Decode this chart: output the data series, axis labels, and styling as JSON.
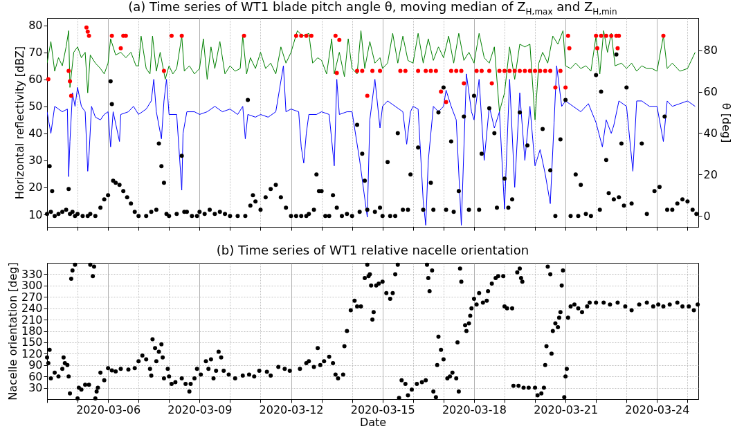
{
  "chart_data": [
    {
      "type": "line",
      "title": "(a) Time series of WT1 blade pitch angle θ, moving median of Z$_{H,max}$ and Z$_{H,min}$",
      "ylabel": "Horizontal reflectivity [dBZ]",
      "y2label": "θ [deg]",
      "xlim": [
        "2020-03-04T00:00",
        "2020-03-25T08:30"
      ],
      "xticks": [
        {
          "value": "2020-03-04",
          "label": null
        },
        {
          "value": "2020-03-05",
          "label": null
        },
        "2020-03-06",
        {
          "value": "2020-03-07",
          "label": null
        },
        {
          "value": "2020-03-08",
          "label": null
        },
        "2020-03-09",
        {
          "value": "2020-03-10",
          "label": null
        },
        {
          "value": "2020-03-11",
          "label": null
        },
        "2020-03-12",
        {
          "value": "2020-03-13",
          "label": null
        },
        {
          "value": "2020-03-14",
          "label": null
        },
        "2020-03-15",
        {
          "value": "2020-03-16",
          "label": null
        },
        {
          "value": "2020-03-17",
          "label": null
        },
        "2020-03-18",
        {
          "value": "2020-03-19",
          "label": null
        },
        {
          "value": "2020-03-20",
          "label": null
        },
        "2020-03-21",
        {
          "value": "2020-03-22",
          "label": null
        },
        {
          "value": "2020-03-23",
          "label": null
        },
        "2020-03-24",
        {
          "value": "2020-03-25",
          "label": null
        }
      ],
      "ylim": [
        5.4,
        82.7
      ],
      "yticks": [
        10,
        20,
        30,
        40,
        50,
        60,
        70,
        80
      ],
      "y2lim": [
        -5.3,
        95.6
      ],
      "y2ticks": [
        0,
        20,
        40,
        60,
        80
      ],
      "grid": "x",
      "tick_labels": "y",
      "series": [
        {
          "color": "#008000",
          "x": [
            "2020-03-04T00:00",
            "2020-03-04T03:00",
            "2020-03-04T06:00",
            "2020-03-04T09:00",
            "2020-03-04T12:00",
            "2020-03-04T15:00",
            "2020-03-04T17:00",
            "2020-03-04T18:00",
            "2020-03-04T21:00",
            "2020-03-05T00:00",
            "2020-03-05T03:00",
            "2020-03-05T06:00",
            "2020-03-05T08:00",
            "2020-03-05T10:00",
            "2020-03-05T14:00",
            "2020-03-05T18:00",
            "2020-03-05T21:00",
            "2020-03-06T00:00",
            "2020-03-06T02:00",
            "2020-03-06T06:00",
            "2020-03-06T10:00",
            "2020-03-06T14:00",
            "2020-03-06T18:00",
            "2020-03-06T22:00",
            "2020-03-07T00:00",
            "2020-03-07T02:00",
            "2020-03-07T06:00",
            "2020-03-07T09:00",
            "2020-03-07T11:00",
            "2020-03-07T14:00",
            "2020-03-07T17:00",
            "2020-03-07T21:00",
            "2020-03-08T00:00",
            "2020-03-08T03:00",
            "2020-03-08T06:00",
            "2020-03-08T10:00",
            "2020-03-08T12:00",
            "2020-03-08T16:00",
            "2020-03-08T20:00",
            "2020-03-09T00:00",
            "2020-03-09T03:00",
            "2020-03-09T06:00",
            "2020-03-09T09:00",
            "2020-03-09T12:00",
            "2020-03-09T16:00",
            "2020-03-09T20:00",
            "2020-03-10T00:00",
            "2020-03-10T04:00",
            "2020-03-10T08:00",
            "2020-03-10T10:00",
            "2020-03-10T13:00",
            "2020-03-10T16:00",
            "2020-03-10T20:00",
            "2020-03-11T00:00",
            "2020-03-11T04:00",
            "2020-03-11T08:00",
            "2020-03-11T12:00",
            "2020-03-11T16:00",
            "2020-03-11T20:00",
            "2020-03-12T00:00",
            "2020-03-12T05:00",
            "2020-03-12T09:00",
            "2020-03-12T14:00",
            "2020-03-12T17:00",
            "2020-03-12T21:00",
            "2020-03-13T00:00",
            "2020-03-13T04:00",
            "2020-03-13T08:00",
            "2020-03-13T10:00",
            "2020-03-13T14:00",
            "2020-03-13T18:00",
            "2020-03-13T21:00",
            "2020-03-14T00:00",
            "2020-03-14T04:00",
            "2020-03-14T07:00",
            "2020-03-14T10:00",
            "2020-03-14T14:00",
            "2020-03-14T18:00",
            "2020-03-14T22:00",
            "2020-03-15T00:00",
            "2020-03-15T04:00",
            "2020-03-15T08:00",
            "2020-03-15T12:00",
            "2020-03-15T16:00",
            "2020-03-15T20:00",
            "2020-03-16T00:00",
            "2020-03-16T04:00",
            "2020-03-16T08:00",
            "2020-03-16T12:00",
            "2020-03-16T16:00",
            "2020-03-16T20:00",
            "2020-03-17T00:00",
            "2020-03-17T04:00",
            "2020-03-17T08:00",
            "2020-03-17T12:00",
            "2020-03-17T16:00",
            "2020-03-17T20:00",
            "2020-03-18T00:00",
            "2020-03-18T04:00",
            "2020-03-18T08:00",
            "2020-03-18T12:00",
            "2020-03-18T16:00",
            "2020-03-18T20:00",
            "2020-03-19T00:00",
            "2020-03-19T04:00",
            "2020-03-19T08:00",
            "2020-03-19T12:00",
            "2020-03-19T16:00",
            "2020-03-19T20:00",
            "2020-03-20T00:00",
            "2020-03-20T03:00",
            "2020-03-20T06:00",
            "2020-03-20T10:00",
            "2020-03-20T14:00",
            "2020-03-20T18:00",
            "2020-03-20T22:00",
            "2020-03-21T00:00",
            "2020-03-21T04:00",
            "2020-03-21T08:00",
            "2020-03-21T12:00",
            "2020-03-21T16:00",
            "2020-03-21T20:00",
            "2020-03-22T00:00",
            "2020-03-22T03:00",
            "2020-03-22T06:00",
            "2020-03-22T09:00",
            "2020-03-22T12:00",
            "2020-03-22T15:00",
            "2020-03-22T20:00",
            "2020-03-23T00:00",
            "2020-03-23T04:00",
            "2020-03-23T08:00",
            "2020-03-23T12:00",
            "2020-03-23T16:00",
            "2020-03-23T20:00",
            "2020-03-24T00:00",
            "2020-03-24T05:00",
            "2020-03-24T08:00",
            "2020-03-24T12:00",
            "2020-03-24T18:00",
            "2020-03-25T00:00",
            "2020-03-25T06:00"
          ],
          "values": [
            66,
            74,
            63,
            68,
            65,
            72,
            78,
            57,
            70,
            72,
            68,
            70,
            55,
            69,
            66,
            64,
            62,
            66,
            75,
            69,
            70,
            68,
            70,
            65,
            65,
            76,
            64,
            62,
            76,
            63,
            70,
            60,
            65,
            62,
            64,
            76,
            63,
            65,
            62,
            64,
            75,
            60,
            72,
            64,
            74,
            62,
            65,
            63,
            64,
            76,
            62,
            68,
            64,
            70,
            64,
            66,
            62,
            72,
            66,
            70,
            78,
            76,
            77,
            66,
            68,
            67,
            62,
            75,
            62,
            70,
            61,
            75,
            64,
            62,
            78,
            64,
            74,
            66,
            68,
            64,
            66,
            77,
            66,
            76,
            67,
            66,
            77,
            66,
            75,
            67,
            72,
            68,
            76,
            66,
            77,
            67,
            70,
            66,
            77,
            68,
            66,
            72,
            48,
            55,
            72,
            60,
            73,
            72,
            73,
            45,
            66,
            70,
            66,
            76,
            73,
            78,
            65,
            64,
            66,
            64,
            65,
            63,
            76,
            62,
            78,
            70,
            77,
            65,
            66,
            64,
            66,
            63,
            65,
            64,
            64,
            63,
            76,
            64,
            66,
            63,
            64,
            70
          ]
        },
        {
          "color": "#0000ff",
          "x": [
            "2020-03-04T00:00",
            "2020-03-04T03:00",
            "2020-03-04T06:00",
            "2020-03-04T12:00",
            "2020-03-04T16:00",
            "2020-03-04T17:00",
            "2020-03-04T18:00",
            "2020-03-04T20:00",
            "2020-03-04T22:00",
            "2020-03-05T00:00",
            "2020-03-05T03:00",
            "2020-03-05T06:00",
            "2020-03-05T08:00",
            "2020-03-05T09:00",
            "2020-03-05T11:00",
            "2020-03-05T14:00",
            "2020-03-05T18:00",
            "2020-03-05T21:00",
            "2020-03-06T00:00",
            "2020-03-06T02:00",
            "2020-03-06T04:00",
            "2020-03-06T09:00",
            "2020-03-06T10:00",
            "2020-03-06T16:00",
            "2020-03-06T20:00",
            "2020-03-07T00:00",
            "2020-03-07T06:00",
            "2020-03-07T10:00",
            "2020-03-07T12:00",
            "2020-03-07T14:00",
            "2020-03-07T18:00",
            "2020-03-07T20:00",
            "2020-03-07T22:00",
            "2020-03-08T00:00",
            "2020-03-08T06:00",
            "2020-03-08T10:00",
            "2020-03-08T11:00",
            "2020-03-08T14:00",
            "2020-03-08T20:00",
            "2020-03-09T00:00",
            "2020-03-09T06:00",
            "2020-03-09T12:00",
            "2020-03-09T18:00",
            "2020-03-10T00:00",
            "2020-03-10T06:00",
            "2020-03-10T10:00",
            "2020-03-10T12:00",
            "2020-03-10T14:00",
            "2020-03-10T20:00",
            "2020-03-11T00:00",
            "2020-03-11T06:00",
            "2020-03-11T12:00",
            "2020-03-11T18:00",
            "2020-03-11T20:00",
            "2020-03-12T00:00",
            "2020-03-12T06:00",
            "2020-03-12T08:00",
            "2020-03-12T10:00",
            "2020-03-12T12:00",
            "2020-03-12T14:00",
            "2020-03-12T20:00",
            "2020-03-13T00:00",
            "2020-03-13T06:00",
            "2020-03-13T10:00",
            "2020-03-13T12:00",
            "2020-03-13T14:00",
            "2020-03-13T20:00",
            "2020-03-14T00:00",
            "2020-03-14T06:00",
            "2020-03-14T12:00",
            "2020-03-14T14:00",
            "2020-03-14T18:00",
            "2020-03-14T22:00",
            "2020-03-15T00:00",
            "2020-03-15T04:00",
            "2020-03-15T10:00",
            "2020-03-15T16:00",
            "2020-03-15T19:00",
            "2020-03-15T22:00",
            "2020-03-16T00:00",
            "2020-03-16T04:00",
            "2020-03-16T08:00",
            "2020-03-16T10:00",
            "2020-03-16T12:00",
            "2020-03-16T16:00",
            "2020-03-16T20:00",
            "2020-03-17T00:00",
            "2020-03-17T02:00",
            "2020-03-17T06:00",
            "2020-03-17T10:00",
            "2020-03-17T14:00",
            "2020-03-17T18:00",
            "2020-03-17T22:00",
            "2020-03-18T00:00",
            "2020-03-18T04:00",
            "2020-03-18T08:00",
            "2020-03-18T12:00",
            "2020-03-18T16:00",
            "2020-03-18T20:00",
            "2020-03-19T00:00",
            "2020-03-19T04:00",
            "2020-03-19T08:00",
            "2020-03-19T12:00",
            "2020-03-19T16:00",
            "2020-03-19T20:00",
            "2020-03-20T00:00",
            "2020-03-20T04:00",
            "2020-03-20T08:00",
            "2020-03-20T12:00",
            "2020-03-20T15:00",
            "2020-03-20T17:00",
            "2020-03-20T21:00",
            "2020-03-21T00:00",
            "2020-03-21T06:00",
            "2020-03-21T12:00",
            "2020-03-21T18:00",
            "2020-03-22T00:00",
            "2020-03-22T05:00",
            "2020-03-22T08:00",
            "2020-03-22T12:00",
            "2020-03-22T14:00",
            "2020-03-22T18:00",
            "2020-03-23T00:00",
            "2020-03-23T05:00",
            "2020-03-23T08:00",
            "2020-03-23T12:00",
            "2020-03-23T18:00",
            "2020-03-24T00:00",
            "2020-03-24T05:00",
            "2020-03-24T08:00",
            "2020-03-24T12:00",
            "2020-03-24T18:00",
            "2020-03-25T00:00",
            "2020-03-25T06:00"
          ],
          "values": [
            48,
            40,
            50,
            48,
            49,
            24,
            37,
            55,
            50,
            57,
            50,
            48,
            26,
            32,
            50,
            46,
            45,
            47,
            48,
            35,
            48,
            37,
            47,
            48,
            50,
            47,
            49,
            52,
            60,
            48,
            38,
            52,
            60,
            47,
            47,
            19,
            40,
            48,
            48,
            47,
            48,
            50,
            48,
            49,
            47,
            50,
            38,
            47,
            46,
            47,
            46,
            48,
            65,
            48,
            49,
            48,
            35,
            29,
            40,
            47,
            47,
            48,
            47,
            28,
            60,
            47,
            48,
            48,
            30,
            9,
            45,
            60,
            42,
            50,
            52,
            50,
            48,
            36,
            48,
            50,
            49,
            15,
            6,
            30,
            50,
            48,
            50,
            56,
            50,
            45,
            6,
            62,
            48,
            45,
            60,
            30,
            50,
            42,
            48,
            12,
            60,
            20,
            55,
            30,
            50,
            28,
            34,
            25,
            14,
            44,
            65,
            50,
            52,
            50,
            48,
            51,
            44,
            35,
            45,
            40,
            43,
            52,
            50,
            26,
            52,
            52,
            50,
            50,
            37,
            52,
            50,
            51,
            52,
            50
          ]
        },
        {
          "type": "scatter",
          "axis": "y2",
          "marker": "circle",
          "color": "#000000",
          "x": [
            "2020-03-04T00:00",
            "2020-03-04T02:00",
            "2020-03-04T03:00",
            "2020-03-04T04:00",
            "2020-03-04T06:00",
            "2020-03-04T09:00",
            "2020-03-04T12:00",
            "2020-03-04T15:00",
            "2020-03-04T17:00",
            "2020-03-04T18:00",
            "2020-03-04T20:00",
            "2020-03-04T22:00",
            "2020-03-05T00:00",
            "2020-03-05T04:00",
            "2020-03-05T08:00",
            "2020-03-05T10:00",
            "2020-03-05T14:00",
            "2020-03-05T18:00",
            "2020-03-05T21:00",
            "2020-03-06T00:00",
            "2020-03-06T02:00",
            "2020-03-06T03:00",
            "2020-03-06T04:00",
            "2020-03-06T06:00",
            "2020-03-06T09:00",
            "2020-03-06T12:00",
            "2020-03-06T15:00",
            "2020-03-06T18:00",
            "2020-03-06T21:00",
            "2020-03-07T00:00",
            "2020-03-07T06:00",
            "2020-03-07T10:00",
            "2020-03-07T14:00",
            "2020-03-07T16:00",
            "2020-03-07T18:00",
            "2020-03-07T20:00",
            "2020-03-07T22:00",
            "2020-03-08T00:00",
            "2020-03-08T06:00",
            "2020-03-08T10:00",
            "2020-03-08T12:00",
            "2020-03-08T14:00",
            "2020-03-08T18:00",
            "2020-03-08T22:00",
            "2020-03-09T00:00",
            "2020-03-09T04:00",
            "2020-03-09T08:00",
            "2020-03-09T12:00",
            "2020-03-09T16:00",
            "2020-03-09T20:00",
            "2020-03-10T00:00",
            "2020-03-10T06:00",
            "2020-03-10T12:00",
            "2020-03-10T14:00",
            "2020-03-10T16:00",
            "2020-03-10T18:00",
            "2020-03-10T20:00",
            "2020-03-11T00:00",
            "2020-03-11T04:00",
            "2020-03-11T08:00",
            "2020-03-11T12:00",
            "2020-03-11T16:00",
            "2020-03-11T20:00",
            "2020-03-12T00:00",
            "2020-03-12T04:00",
            "2020-03-12T08:00",
            "2020-03-12T12:00",
            "2020-03-12T14:00",
            "2020-03-12T18:00",
            "2020-03-12T20:00",
            "2020-03-12T22:00",
            "2020-03-13T00:00",
            "2020-03-13T03:00",
            "2020-03-13T06:00",
            "2020-03-13T09:00",
            "2020-03-13T12:00",
            "2020-03-13T16:00",
            "2020-03-13T20:00",
            "2020-03-14T00:00",
            "2020-03-14T04:00",
            "2020-03-14T06:00",
            "2020-03-14T08:00",
            "2020-03-14T10:00",
            "2020-03-14T12:00",
            "2020-03-14T18:00",
            "2020-03-14T22:00",
            "2020-03-15T00:00",
            "2020-03-15T04:00",
            "2020-03-15T06:00",
            "2020-03-15T10:00",
            "2020-03-15T12:00",
            "2020-03-15T16:00",
            "2020-03-15T20:00",
            "2020-03-15T22:00",
            "2020-03-16T04:00",
            "2020-03-16T08:00",
            "2020-03-16T14:00",
            "2020-03-16T16:00",
            "2020-03-16T20:00",
            "2020-03-17T00:00",
            "2020-03-17T02:00",
            "2020-03-17T06:00",
            "2020-03-17T08:00",
            "2020-03-17T12:00",
            "2020-03-17T16:00",
            "2020-03-17T20:00",
            "2020-03-18T00:00",
            "2020-03-18T04:00",
            "2020-03-18T06:00",
            "2020-03-18T12:00",
            "2020-03-18T16:00",
            "2020-03-18T18:00",
            "2020-03-19T00:00",
            "2020-03-19T03:00",
            "2020-03-19T06:00",
            "2020-03-19T12:00",
            "2020-03-19T18:00",
            "2020-03-20T06:00",
            "2020-03-20T12:00",
            "2020-03-20T16:00",
            "2020-03-20T20:00",
            "2020-03-21T00:00",
            "2020-03-21T04:00",
            "2020-03-21T08:00",
            "2020-03-21T10:00",
            "2020-03-21T12:00",
            "2020-03-21T16:00",
            "2020-03-21T20:00",
            "2020-03-22T00:00",
            "2020-03-22T03:00",
            "2020-03-22T04:00",
            "2020-03-22T08:00",
            "2020-03-22T10:00",
            "2020-03-22T14:00",
            "2020-03-22T16:00",
            "2020-03-22T18:00",
            "2020-03-22T20:00",
            "2020-03-22T22:00",
            "2020-03-23T00:00",
            "2020-03-23T04:00",
            "2020-03-23T12:00",
            "2020-03-23T16:00",
            "2020-03-23T22:00",
            "2020-03-24T02:00",
            "2020-03-24T06:00",
            "2020-03-24T08:00",
            "2020-03-24T12:00",
            "2020-03-24T16:00",
            "2020-03-24T20:00",
            "2020-03-25T00:00",
            "2020-03-25T04:00",
            "2020-03-25T07:00"
          ],
          "values": [
            1,
            24,
            2,
            12,
            0,
            1,
            2,
            3,
            13,
            1,
            2,
            0,
            1,
            0,
            0,
            1,
            0,
            4,
            8,
            10,
            65,
            54,
            17,
            16,
            15,
            12,
            9,
            6,
            2,
            0,
            0,
            2,
            3,
            35,
            24,
            16,
            1,
            0,
            1,
            29,
            2,
            2,
            0,
            0,
            2,
            1,
            3,
            1,
            2,
            1,
            0,
            0,
            0,
            56,
            5,
            10,
            7,
            3,
            9,
            13,
            15,
            9,
            4,
            0,
            0,
            0,
            0,
            1,
            3,
            20,
            12,
            12,
            0,
            0,
            10,
            4,
            0,
            1,
            0,
            44,
            2,
            30,
            17,
            3,
            2,
            4,
            0,
            26,
            0,
            0,
            40,
            3,
            3,
            20,
            33,
            3,
            16,
            3,
            50,
            62,
            3,
            36,
            2,
            12,
            48,
            3,
            58,
            3,
            30,
            52,
            40,
            4,
            18,
            4,
            8,
            50,
            34,
            42,
            22,
            0,
            37,
            56,
            0,
            20,
            0,
            15,
            1,
            0,
            68,
            3,
            60,
            27,
            11,
            8,
            78,
            9,
            35,
            5,
            62,
            6,
            35,
            1,
            12,
            14,
            48,
            3,
            3,
            6,
            8,
            7,
            3,
            1
          ]
        },
        {
          "type": "scatter",
          "axis": "y2",
          "marker": "circle",
          "color": "#ff0000",
          "x": [
            "2020-03-04T01:00",
            "2020-03-04T17:00",
            "2020-03-04T18:00",
            "2020-03-04T19:00",
            "2020-03-05T07:00",
            "2020-03-05T08:00",
            "2020-03-05T09:00",
            "2020-03-06T03:00",
            "2020-03-06T10:00",
            "2020-03-06T12:00",
            "2020-03-06T14:00",
            "2020-03-07T20:00",
            "2020-03-08T02:00",
            "2020-03-08T10:00",
            "2020-03-10T11:00",
            "2020-03-12T04:00",
            "2020-03-12T08:00",
            "2020-03-12T12:00",
            "2020-03-12T16:00",
            "2020-03-13T11:00",
            "2020-03-13T12:00",
            "2020-03-13T14:00",
            "2020-03-14T04:00",
            "2020-03-14T08:00",
            "2020-03-14T12:00",
            "2020-03-14T16:00",
            "2020-03-14T22:00",
            "2020-03-15T14:00",
            "2020-03-15T18:00",
            "2020-03-16T04:00",
            "2020-03-16T10:00",
            "2020-03-16T14:00",
            "2020-03-16T18:00",
            "2020-03-16T22:00",
            "2020-03-17T02:00",
            "2020-03-17T06:00",
            "2020-03-17T10:00",
            "2020-03-17T14:00",
            "2020-03-17T16:00",
            "2020-03-18T02:00",
            "2020-03-18T06:00",
            "2020-03-18T12:00",
            "2020-03-18T14:00",
            "2020-03-18T20:00",
            "2020-03-19T00:00",
            "2020-03-19T04:00",
            "2020-03-19T08:00",
            "2020-03-19T12:00",
            "2020-03-19T16:00",
            "2020-03-19T20:00",
            "2020-03-20T00:00",
            "2020-03-20T04:00",
            "2020-03-20T08:00",
            "2020-03-20T12:00",
            "2020-03-20T16:00",
            "2020-03-20T20:00",
            "2020-03-21T00:00",
            "2020-03-21T02:00",
            "2020-03-21T03:00",
            "2020-03-22T00:00",
            "2020-03-22T01:00",
            "2020-03-22T04:00",
            "2020-03-22T08:00",
            "2020-03-22T12:00",
            "2020-03-22T16:00",
            "2020-03-22T17:00",
            "2020-03-22T18:00",
            "2020-03-24T05:00"
          ],
          "values": [
            66,
            70,
            65,
            58,
            91,
            89,
            87,
            87,
            81,
            87,
            87,
            70,
            87,
            87,
            87,
            87,
            87,
            87,
            87,
            87,
            69,
            85,
            70,
            70,
            58,
            70,
            70,
            70,
            70,
            70,
            70,
            70,
            70,
            60,
            55,
            70,
            70,
            70,
            64,
            70,
            70,
            70,
            64,
            70,
            70,
            70,
            70,
            70,
            70,
            70,
            70,
            70,
            70,
            70,
            62,
            70,
            62,
            87,
            81,
            87,
            81,
            87,
            87,
            87,
            87,
            81,
            87,
            87
          ]
        }
      ]
    },
    {
      "type": "scatter",
      "title": "(b) Time series of WT1 relative nacelle orientation",
      "xlabel": "Date",
      "ylabel": "Nacelle orientation [deg]",
      "xlim": [
        "2020-03-04T00:00",
        "2020-03-25T08:30"
      ],
      "xticks": [
        {
          "value": "2020-03-04",
          "label": null
        },
        {
          "value": "2020-03-05",
          "label": null
        },
        "2020-03-06",
        {
          "value": "2020-03-07",
          "label": null
        },
        {
          "value": "2020-03-08",
          "label": null
        },
        "2020-03-09",
        {
          "value": "2020-03-10",
          "label": null
        },
        {
          "value": "2020-03-11",
          "label": null
        },
        "2020-03-12",
        {
          "value": "2020-03-13",
          "label": null
        },
        {
          "value": "2020-03-14",
          "label": null
        },
        "2020-03-15",
        {
          "value": "2020-03-16",
          "label": null
        },
        {
          "value": "2020-03-17",
          "label": null
        },
        "2020-03-18",
        {
          "value": "2020-03-19",
          "label": null
        },
        {
          "value": "2020-03-20",
          "label": null
        },
        "2020-03-21",
        {
          "value": "2020-03-22",
          "label": null
        },
        {
          "value": "2020-03-23",
          "label": null
        },
        "2020-03-24",
        {
          "value": "2020-03-25",
          "label": null
        }
      ],
      "ylim": [
        0,
        360
      ],
      "yticks": [
        30,
        60,
        90,
        120,
        150,
        180,
        210,
        240,
        270,
        300,
        330
      ],
      "grid": true,
      "marker": "circle",
      "series": [
        {
          "color": "#000000",
          "x": [
            "2020-03-04T00:00",
            "2020-03-04T01:00",
            "2020-03-04T02:00",
            "2020-03-04T03:00",
            "2020-03-04T06:00",
            "2020-03-04T09:00",
            "2020-03-04T12:00",
            "2020-03-04T13:00",
            "2020-03-04T14:00",
            "2020-03-04T16:00",
            "2020-03-04T17:00",
            "2020-03-04T18:00",
            "2020-03-04T19:00",
            "2020-03-04T20:00",
            "2020-03-04T22:00",
            "2020-03-05T00:00",
            "2020-03-05T01:00",
            "2020-03-05T03:00",
            "2020-03-05T06:00",
            "2020-03-05T09:00",
            "2020-03-05T10:00",
            "2020-03-05T12:00",
            "2020-03-05T13:00",
            "2020-03-05T14:00",
            "2020-03-05T15:00",
            "2020-03-05T16:00",
            "2020-03-05T18:00",
            "2020-03-05T21:00",
            "2020-03-06T00:00",
            "2020-03-06T03:00",
            "2020-03-06T06:00",
            "2020-03-06T10:00",
            "2020-03-06T16:00",
            "2020-03-06T21:00",
            "2020-03-07T00:00",
            "2020-03-07T03:00",
            "2020-03-07T06:00",
            "2020-03-07T09:00",
            "2020-03-07T10:00",
            "2020-03-07T11:00",
            "2020-03-07T13:00",
            "2020-03-07T14:00",
            "2020-03-07T16:00",
            "2020-03-07T18:00",
            "2020-03-07T19:00",
            "2020-03-07T20:00",
            "2020-03-07T23:00",
            "2020-03-08T00:00",
            "2020-03-08T02:00",
            "2020-03-08T05:00",
            "2020-03-08T10:00",
            "2020-03-08T13:00",
            "2020-03-08T16:00",
            "2020-03-08T17:00",
            "2020-03-08T20:00",
            "2020-03-08T22:00",
            "2020-03-09T01:00",
            "2020-03-09T05:00",
            "2020-03-09T07:00",
            "2020-03-09T09:00",
            "2020-03-09T11:00",
            "2020-03-09T13:00",
            "2020-03-09T15:00",
            "2020-03-09T17:00",
            "2020-03-09T19:00",
            "2020-03-09T23:00",
            "2020-03-10T04:00",
            "2020-03-10T10:00",
            "2020-03-10T15:00",
            "2020-03-10T19:00",
            "2020-03-10T23:00",
            "2020-03-11T05:00",
            "2020-03-11T08:00",
            "2020-03-11T14:00",
            "2020-03-11T19:00",
            "2020-03-11T23:00",
            "2020-03-12T07:00",
            "2020-03-12T12:00",
            "2020-03-12T14:00",
            "2020-03-12T18:00",
            "2020-03-12T21:00",
            "2020-03-12T23:00",
            "2020-03-13T02:00",
            "2020-03-13T06:00",
            "2020-03-13T09:00",
            "2020-03-13T11:00",
            "2020-03-13T13:00",
            "2020-03-13T17:00",
            "2020-03-13T18:00",
            "2020-03-13T20:00",
            "2020-03-13T23:00",
            "2020-03-14T02:00",
            "2020-03-14T04:00",
            "2020-03-14T07:00",
            "2020-03-14T10:00",
            "2020-03-14T12:00",
            "2020-03-14T13:00",
            "2020-03-14T15:00",
            "2020-03-14T14:00",
            "2020-03-14T16:00",
            "2020-03-14T17:00",
            "2020-03-14T19:00",
            "2020-03-14T21:00",
            "2020-03-15T00:00",
            "2020-03-15T03:00",
            "2020-03-15T06:00",
            "2020-03-15T08:00",
            "2020-03-15T10:00",
            "2020-03-15T12:00",
            "2020-03-15T13:00",
            "2020-03-15T15:00",
            "2020-03-15T18:00",
            "2020-03-15T20:00",
            "2020-03-15T23:00",
            "2020-03-16T03:00",
            "2020-03-16T07:00",
            "2020-03-16T10:00",
            "2020-03-16T11:00",
            "2020-03-16T12:00",
            "2020-03-16T13:00",
            "2020-03-16T15:00",
            "2020-03-16T16:00",
            "2020-03-16T18:00",
            "2020-03-16T19:00",
            "2020-03-16T20:00",
            "2020-03-16T22:00",
            "2020-03-17T00:00",
            "2020-03-17T03:00",
            "2020-03-17T05:00",
            "2020-03-17T07:00",
            "2020-03-17T10:00",
            "2020-03-17T11:00",
            "2020-03-17T12:00",
            "2020-03-17T13:00",
            "2020-03-17T14:00",
            "2020-03-17T17:00",
            "2020-03-17T18:00",
            "2020-03-17T20:00",
            "2020-03-17T21:00",
            "2020-03-17T22:00",
            "2020-03-18T00:00",
            "2020-03-18T02:00",
            "2020-03-18T04:00",
            "2020-03-18T07:00",
            "2020-03-18T10:00",
            "2020-03-18T11:00",
            "2020-03-18T14:00",
            "2020-03-18T17:00",
            "2020-03-18T19:00",
            "2020-03-18T23:00",
            "2020-03-19T00:00",
            "2020-03-19T02:00",
            "2020-03-19T06:00",
            "2020-03-19T07:00",
            "2020-03-19T10:00",
            "2020-03-19T11:00",
            "2020-03-19T12:00",
            "2020-03-19T13:00",
            "2020-03-19T14:00",
            "2020-03-19T15:00",
            "2020-03-19T19:00",
            "2020-03-20T00:00",
            "2020-03-20T02:00",
            "2020-03-20T05:00",
            "2020-03-20T07:00",
            "2020-03-20T08:00",
            "2020-03-20T09:00",
            "2020-03-20T10:00",
            "2020-03-20T12:00",
            "2020-03-20T13:00",
            "2020-03-20T14:00",
            "2020-03-20T16:00",
            "2020-03-20T18:00",
            "2020-03-20T19:00",
            "2020-03-20T20:00",
            "2020-03-20T21:00",
            "2020-03-20T22:00",
            "2020-03-20T23:00",
            "2020-03-21T00:00",
            "2020-03-21T01:00",
            "2020-03-21T02:00",
            "2020-03-21T04:00",
            "2020-03-21T07:00",
            "2020-03-21T10:00",
            "2020-03-21T13:00",
            "2020-03-21T17:00",
            "2020-03-21T19:00",
            "2020-03-22T00:00",
            "2020-03-22T06:00",
            "2020-03-22T11:00",
            "2020-03-22T17:00",
            "2020-03-22T23:00",
            "2020-03-23T04:00",
            "2020-03-23T10:00",
            "2020-03-23T16:00",
            "2020-03-23T21:00",
            "2020-03-24T01:00",
            "2020-03-24T05:00",
            "2020-03-24T10:00",
            "2020-03-24T16:00",
            "2020-03-24T20:00",
            "2020-03-25T01:00",
            "2020-03-25T05:00",
            "2020-03-25T08:00"
          ],
          "values": [
            110,
            95,
            130,
            55,
            70,
            60,
            80,
            110,
            95,
            90,
            60,
            15,
            318,
            340,
            355,
            2,
            30,
            25,
            38,
            38,
            355,
            325,
            350,
            2,
            20,
            30,
            70,
            50,
            82,
            76,
            73,
            80,
            78,
            82,
            100,
            115,
            105,
            80,
            62,
            158,
            135,
            100,
            125,
            145,
            110,
            55,
            80,
            60,
            40,
            45,
            55,
            40,
            20,
            40,
            55,
            80,
            65,
            100,
            80,
            105,
            55,
            75,
            125,
            110,
            75,
            65,
            55,
            62,
            65,
            60,
            75,
            72,
            62,
            85,
            80,
            75,
            80,
            95,
            100,
            85,
            135,
            90,
            100,
            112,
            95,
            65,
            55,
            65,
            140,
            180,
            235,
            260,
            245,
            245,
            320,
            355,
            325,
            300,
            330,
            210,
            230,
            300,
            305,
            310,
            280,
            265,
            280,
            330,
            355,
            3,
            50,
            40,
            10,
            25,
            40,
            45,
            50,
            355,
            320,
            285,
            340,
            20,
            5,
            90,
            165,
            130,
            105,
            55,
            60,
            70,
            55,
            150,
            20,
            345,
            310,
            195,
            180,
            200,
            220,
            240,
            265,
            250,
            280,
            255,
            260,
            285,
            305,
            320,
            325,
            325,
            245,
            240,
            240,
            35,
            335,
            35,
            345,
            320,
            310,
            30,
            30,
            30,
            10,
            15,
            30,
            90,
            140,
            350,
            330,
            120,
            180,
            200,
            190,
            215,
            230,
            300,
            340,
            5,
            60,
            80,
            215,
            245,
            250,
            240,
            230,
            245,
            255,
            255,
            255,
            250,
            255,
            245,
            235,
            250,
            255,
            245,
            250,
            245,
            250,
            255,
            245,
            245,
            235,
            250
          ]
        }
      ]
    }
  ]
}
